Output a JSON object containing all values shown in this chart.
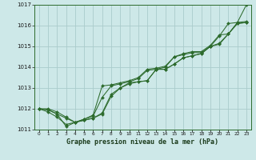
{
  "title": "Graphe pression niveau de la mer (hPa)",
  "ylim": [
    1011,
    1017
  ],
  "yticks": [
    1011,
    1012,
    1013,
    1014,
    1015,
    1016,
    1017
  ],
  "bg_color": "#cde8e8",
  "grid_color": "#aacccc",
  "line_color": "#2d6b2d",
  "marker_color": "#2d6b2d",
  "series": [
    [
      1012.0,
      1012.0,
      1011.85,
      1011.6,
      1011.35,
      1011.45,
      1011.55,
      1011.75,
      1012.6,
      1013.0,
      1013.2,
      1013.3,
      1013.35,
      1013.9,
      1013.9,
      1014.15,
      1014.45,
      1014.55,
      1014.65,
      1015.0,
      1015.5,
      1016.1,
      1016.15,
      1017.0
    ],
    [
      1012.0,
      1011.95,
      1011.75,
      1011.55,
      1011.35,
      1011.45,
      1011.55,
      1011.8,
      1012.7,
      1013.0,
      1013.25,
      1013.3,
      1013.35,
      1013.9,
      1013.9,
      1014.15,
      1014.45,
      1014.55,
      1014.65,
      1015.0,
      1015.1,
      1015.6,
      1016.1,
      1016.15
    ],
    [
      1012.0,
      1011.95,
      1011.75,
      1011.15,
      1011.35,
      1011.5,
      1011.65,
      1012.55,
      1013.1,
      1013.2,
      1013.3,
      1013.45,
      1013.85,
      1013.9,
      1014.0,
      1014.5,
      1014.6,
      1014.7,
      1014.7,
      1015.0,
      1015.15,
      1015.6,
      1016.1,
      1016.15
    ],
    [
      1012.0,
      1011.85,
      1011.6,
      1011.25,
      1011.35,
      1011.5,
      1011.7,
      1013.1,
      1013.15,
      1013.25,
      1013.35,
      1013.5,
      1013.9,
      1013.95,
      1014.05,
      1014.5,
      1014.65,
      1014.75,
      1014.75,
      1015.05,
      1015.55,
      1015.6,
      1016.15,
      1016.2
    ]
  ]
}
